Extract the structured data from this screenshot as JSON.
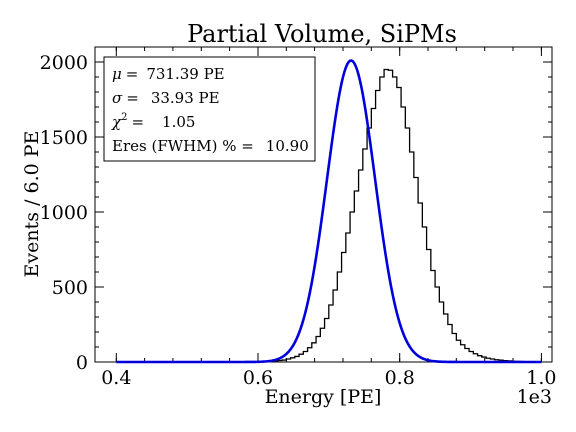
{
  "chart_data": {
    "type": "line",
    "title": "Partial Volume, SiPMs",
    "xlabel": "Energy [PE]",
    "ylabel": "Events / 6.0 PE",
    "x_multiplier_label": "1e3",
    "xlim": [
      0.37,
      1.015
    ],
    "ylim": [
      0,
      2100
    ],
    "xticks": [
      0.4,
      0.6,
      0.8,
      1.0
    ],
    "xtick_labels": [
      "0.4",
      "0.6",
      "0.8",
      "1.0"
    ],
    "yticks": [
      0,
      500,
      1000,
      1500,
      2000
    ],
    "ytick_labels": [
      "0",
      "500",
      "1000",
      "1500",
      "2000"
    ],
    "grid": false,
    "stats_box": {
      "placement": "top-left",
      "mu_symbol": "μ",
      "mu_value": "731.39 PE",
      "sigma_symbol": "σ",
      "sigma_value": "33.93 PE",
      "chi_symbol": "χ",
      "chi_sup": "2",
      "chi_value": "1.05",
      "eres_label": "Eres (FWHM) % =",
      "eres_value": "10.90",
      "equals": "="
    },
    "series": [
      {
        "kind": "histogram-step",
        "color": "#000000",
        "bin_width": 0.006,
        "x_start": 0.61,
        "counts": [
          3,
          5,
          6,
          10,
          13,
          20,
          28,
          37,
          52,
          70,
          95,
          128,
          170,
          225,
          290,
          380,
          480,
          600,
          730,
          860,
          1000,
          1140,
          1280,
          1420,
          1560,
          1690,
          1810,
          1900,
          1950,
          1945,
          1900,
          1830,
          1700,
          1560,
          1400,
          1230,
          1060,
          900,
          750,
          610,
          500,
          400,
          320,
          250,
          190,
          145,
          115,
          90,
          70,
          55,
          42,
          33,
          25,
          20,
          15,
          12,
          9,
          7,
          5,
          4,
          3,
          2,
          2
        ]
      },
      {
        "kind": "gaussian-fit",
        "color": "#0000dd",
        "amplitude": 2010,
        "mean": 0.73139,
        "sigma": 0.03393,
        "x_range": [
          0.4,
          1.0
        ]
      }
    ]
  }
}
